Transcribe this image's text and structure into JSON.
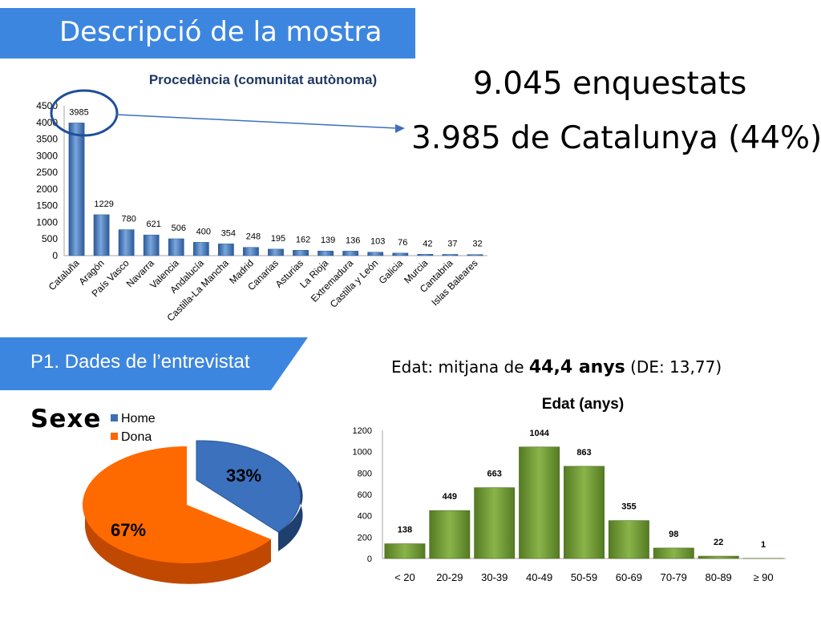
{
  "header": {
    "title": "Descripció de la mostra"
  },
  "summary": {
    "line1": "9.045 enquestats",
    "line2": "3.985 de Catalunya (44%)"
  },
  "section": {
    "title": "P1. Dades de l’entrevistat"
  },
  "age_stats": {
    "prefix": "Edat: mitjana de ",
    "mean": "44,4 anys",
    "suffix": " (DE: 13,77)"
  },
  "sexe": {
    "title": "Sexe"
  },
  "chart_data": [
    {
      "type": "bar",
      "title": "Procedència (comunitat autònoma)",
      "categories": [
        "Cataluña",
        "Aragón",
        "País Vasco",
        "Navarra",
        "Valencia",
        "Andalucía",
        "Castilla-La Mancha",
        "Madrid",
        "Canarias",
        "Asturias",
        "La Rioja",
        "Extremadura",
        "Castilla y León",
        "Galicia",
        "Murcia",
        "Cantabria",
        "Islas Baleares"
      ],
      "values": [
        3985,
        1229,
        780,
        621,
        506,
        400,
        354,
        248,
        195,
        162,
        139,
        136,
        103,
        76,
        42,
        37,
        32
      ],
      "ylim": [
        0,
        4500
      ],
      "yticks": [
        0,
        500,
        1000,
        1500,
        2000,
        2500,
        3000,
        3500,
        4000,
        4500
      ],
      "color": "#4a7ec2",
      "grid": false
    },
    {
      "type": "pie",
      "title": "",
      "labels": [
        "Home",
        "Dona"
      ],
      "values": [
        33,
        67
      ],
      "value_labels": [
        "33%",
        "67%"
      ],
      "colors": [
        "#3a6fb8",
        "#ff6600"
      ],
      "legend": "top-left"
    },
    {
      "type": "bar",
      "title": "Edat (anys)",
      "categories": [
        "< 20",
        "20-29",
        "30-39",
        "40-49",
        "50-59",
        "60-69",
        "70-79",
        "80-89",
        "≥ 90"
      ],
      "values": [
        138,
        449,
        663,
        1044,
        863,
        355,
        98,
        22,
        1
      ],
      "ylim": [
        0,
        1200
      ],
      "yticks": [
        0,
        200,
        400,
        600,
        800,
        1000,
        1200
      ],
      "color": "#6f9a34",
      "grid": false
    }
  ]
}
